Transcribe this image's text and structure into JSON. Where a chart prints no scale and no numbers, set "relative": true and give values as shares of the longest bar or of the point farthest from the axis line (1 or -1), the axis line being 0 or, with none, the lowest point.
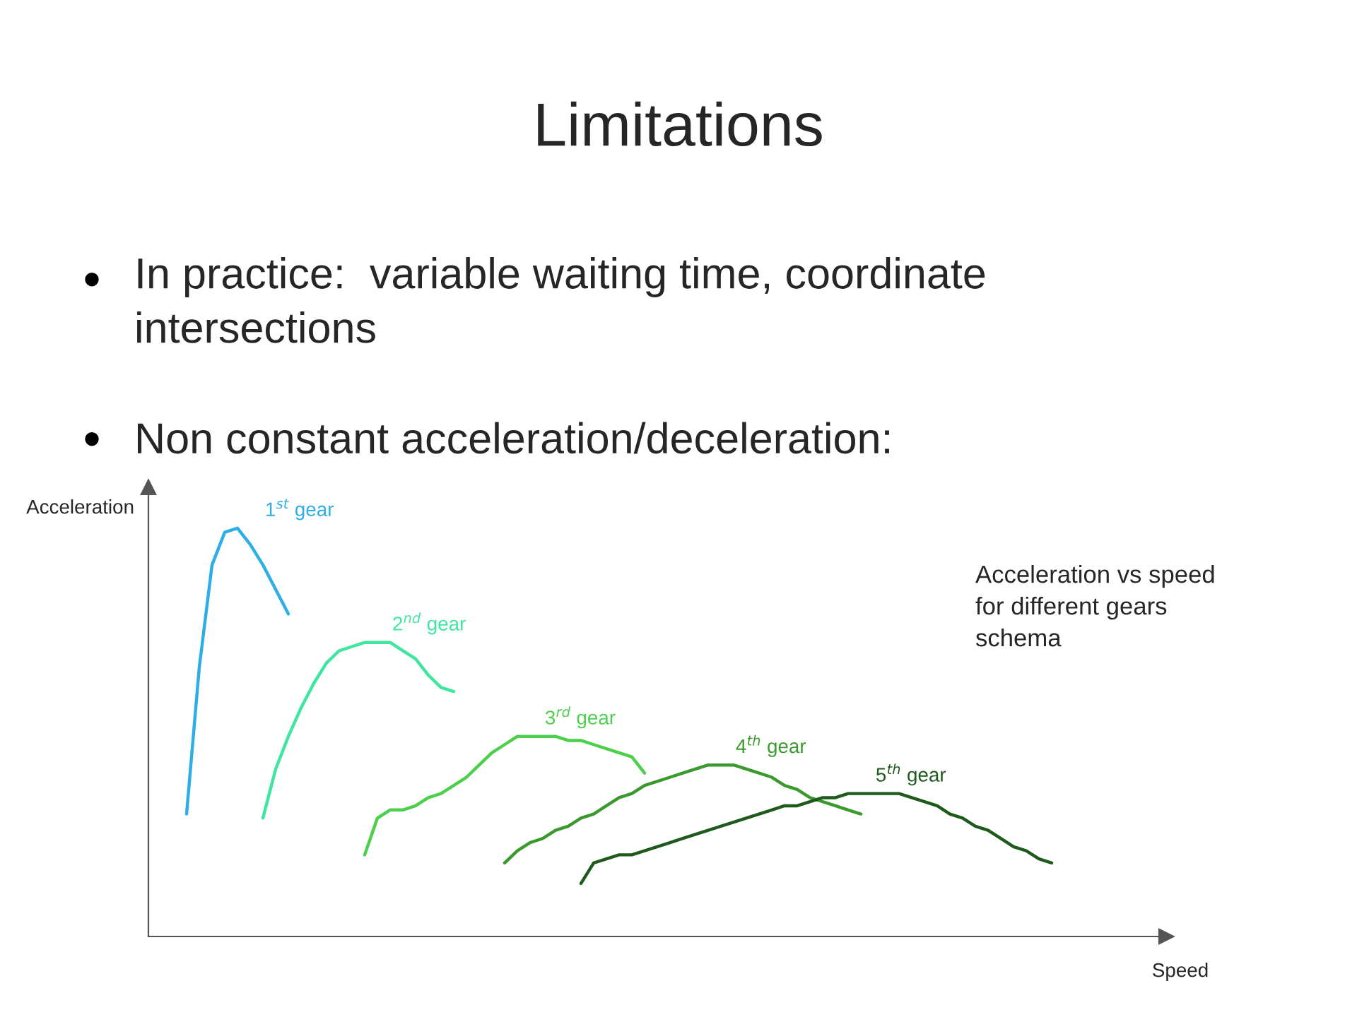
{
  "chart_data": {
    "type": "line",
    "title": "Limitations",
    "xlabel": "Speed",
    "ylabel": "Acceleration",
    "relative": true,
    "legend": false,
    "grid": false,
    "marker": "none",
    "line_style": "solid",
    "annotations": [
      "In practice:  variable waiting time, coordinate\nintersections",
      "Non constant acceleration/deceleration:",
      "Acceleration vs speed\nfor different gears\nschema"
    ],
    "categories": [
      null,
      null,
      null,
      null,
      null,
      null,
      null,
      null,
      null,
      null,
      null,
      null,
      null,
      null,
      null,
      null,
      null,
      null,
      null,
      null,
      null,
      null,
      null,
      null,
      null,
      null,
      null,
      null,
      null,
      null,
      null,
      null,
      null,
      null,
      null,
      null,
      null,
      null,
      null,
      null,
      null,
      null,
      null,
      null,
      null,
      null,
      null,
      null,
      null,
      null,
      null,
      null,
      null,
      null,
      null,
      null,
      null,
      null,
      null,
      null,
      null,
      null,
      null,
      null,
      null,
      null,
      null,
      null,
      null,
      null,
      null,
      null,
      null,
      null,
      null,
      null,
      null,
      null,
      null,
      null,
      null
    ],
    "series": [
      {
        "name": "1$^{st}$ gear",
        "color": "#2eaee6",
        "values": [
          null,
          null,
          null,
          0.3,
          0.66,
          0.91,
          0.99,
          1.0,
          0.96,
          0.91,
          0.85,
          0.79,
          null,
          null,
          null,
          null,
          null,
          null,
          null,
          null,
          null,
          null,
          null,
          null,
          null,
          null,
          null,
          null,
          null,
          null,
          null,
          null,
          null,
          null,
          null,
          null,
          null,
          null,
          null,
          null,
          null,
          null,
          null,
          null,
          null,
          null,
          null,
          null,
          null,
          null,
          null,
          null,
          null,
          null,
          null,
          null,
          null,
          null,
          null,
          null,
          null,
          null,
          null,
          null,
          null,
          null,
          null,
          null,
          null,
          null,
          null,
          null,
          null,
          null,
          null,
          null,
          null,
          null,
          null,
          null,
          null
        ]
      },
      {
        "name": "2$^{nd}$ gear",
        "color": "#3ee6a0",
        "values": [
          null,
          null,
          null,
          null,
          null,
          null,
          null,
          null,
          null,
          0.29,
          0.41,
          0.49,
          0.56,
          0.62,
          0.67,
          0.7,
          0.71,
          0.72,
          0.72,
          0.72,
          0.7,
          0.68,
          0.64,
          0.61,
          0.6,
          null,
          null,
          null,
          null,
          null,
          null,
          null,
          null,
          null,
          null,
          null,
          null,
          null,
          null,
          null,
          null,
          null,
          null,
          null,
          null,
          null,
          null,
          null,
          null,
          null,
          null,
          null,
          null,
          null,
          null,
          null,
          null,
          null,
          null,
          null,
          null,
          null,
          null,
          null,
          null,
          null,
          null,
          null,
          null,
          null,
          null,
          null,
          null,
          null,
          null,
          null,
          null,
          null,
          null,
          null,
          null
        ]
      },
      {
        "name": "3$^{rd}$ gear",
        "color": "#4cd04c",
        "values": [
          null,
          null,
          null,
          null,
          null,
          null,
          null,
          null,
          null,
          null,
          null,
          null,
          null,
          null,
          null,
          null,
          null,
          0.2,
          0.29,
          0.31,
          0.31,
          0.32,
          0.34,
          0.35,
          0.37,
          0.39,
          0.42,
          0.45,
          0.47,
          0.49,
          0.49,
          0.49,
          0.49,
          0.48,
          0.48,
          0.47,
          0.46,
          0.45,
          0.44,
          0.4,
          null,
          null,
          null,
          null,
          null,
          null,
          null,
          null,
          null,
          null,
          null,
          null,
          null,
          null,
          null,
          null,
          null,
          null,
          null,
          null,
          null,
          null,
          null,
          null,
          null,
          null,
          null,
          null,
          null,
          null,
          null,
          null,
          null,
          null,
          null,
          null,
          null,
          null,
          null,
          null,
          null
        ]
      },
      {
        "name": "4$^{th}$ gear",
        "color": "#3a9a2e",
        "values": [
          null,
          null,
          null,
          null,
          null,
          null,
          null,
          null,
          null,
          null,
          null,
          null,
          null,
          null,
          null,
          null,
          null,
          null,
          null,
          null,
          null,
          null,
          null,
          null,
          null,
          null,
          null,
          null,
          0.18,
          0.21,
          0.23,
          0.24,
          0.26,
          0.27,
          0.29,
          0.3,
          0.32,
          0.34,
          0.35,
          0.37,
          0.38,
          0.39,
          0.4,
          0.41,
          0.42,
          0.42,
          0.42,
          0.41,
          0.4,
          0.39,
          0.37,
          0.36,
          0.34,
          0.33,
          0.32,
          0.31,
          0.3,
          null,
          null,
          null,
          null,
          null,
          null,
          null,
          null,
          null,
          null,
          null,
          null,
          null,
          null,
          null,
          null,
          null,
          null,
          null,
          null,
          null,
          null,
          null,
          null
        ]
      },
      {
        "name": "5$^{th}$ gear",
        "color": "#1f5a1d",
        "values": [
          null,
          null,
          null,
          null,
          null,
          null,
          null,
          null,
          null,
          null,
          null,
          null,
          null,
          null,
          null,
          null,
          null,
          null,
          null,
          null,
          null,
          null,
          null,
          null,
          null,
          null,
          null,
          null,
          null,
          null,
          null,
          null,
          null,
          null,
          0.13,
          0.18,
          0.19,
          0.2,
          0.2,
          0.21,
          0.22,
          0.23,
          0.24,
          0.25,
          0.26,
          0.27,
          0.28,
          0.29,
          0.3,
          0.31,
          0.32,
          0.32,
          0.33,
          0.34,
          0.34,
          0.35,
          0.35,
          0.35,
          0.35,
          0.35,
          0.34,
          0.33,
          0.32,
          0.3,
          0.29,
          0.27,
          0.26,
          0.24,
          0.22,
          0.21,
          0.19,
          0.18,
          null,
          null,
          null,
          null,
          null,
          null,
          null,
          null,
          null
        ]
      }
    ]
  }
}
